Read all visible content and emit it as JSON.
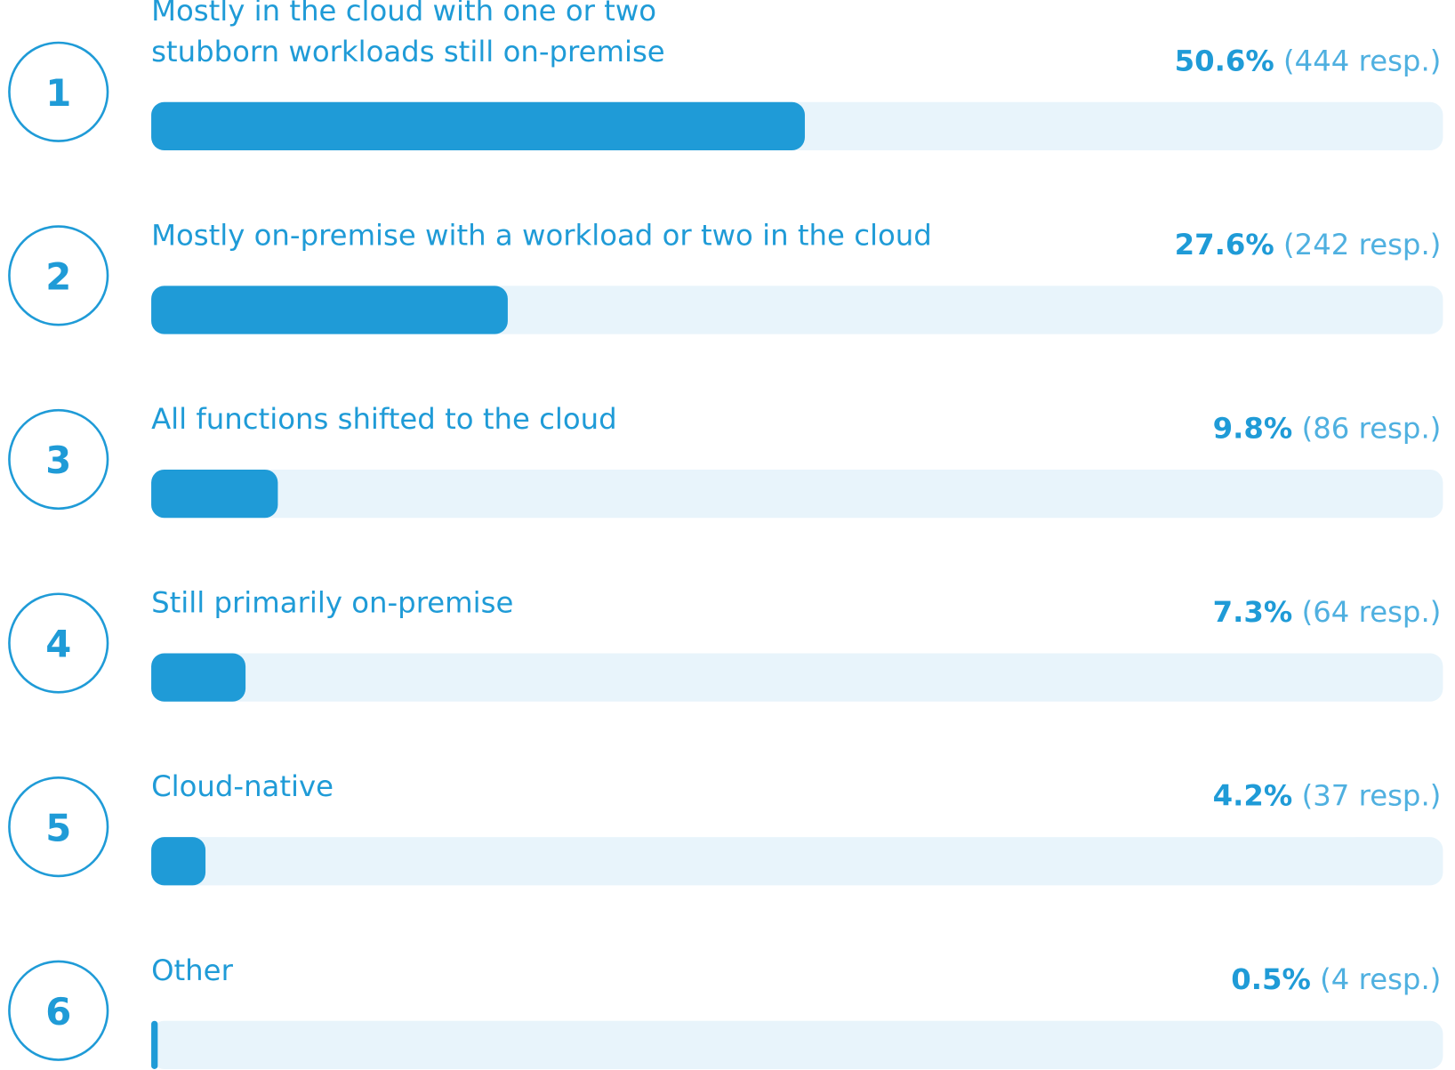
{
  "chart_data": {
    "type": "bar",
    "orientation": "horizontal",
    "ranks": [
      1,
      2,
      3,
      4,
      5,
      6
    ],
    "categories": [
      "Mostly in the cloud with one or two stubborn workloads still on-premise",
      "Mostly on-premise with a workload or two in the cloud",
      "All functions shifted to the cloud",
      "Still primarily on-premise",
      "Cloud-native",
      "Other"
    ],
    "values": [
      50.6,
      27.6,
      9.8,
      7.3,
      4.2,
      0.5
    ],
    "value_labels": [
      "50.6%",
      "27.6%",
      "9.8%",
      "7.3%",
      "4.2%",
      "0.5%"
    ],
    "responses": [
      444,
      242,
      86,
      64,
      37,
      4
    ],
    "response_labels": [
      "(444 resp.)",
      "(242 resp.)",
      "(86 resp.)",
      "(64 resp.)",
      "(37 resp.)",
      "(4 resp.)"
    ],
    "xlim": [
      0,
      100
    ],
    "color": "#1f9bd7",
    "track_color": "#e8f4fb"
  }
}
